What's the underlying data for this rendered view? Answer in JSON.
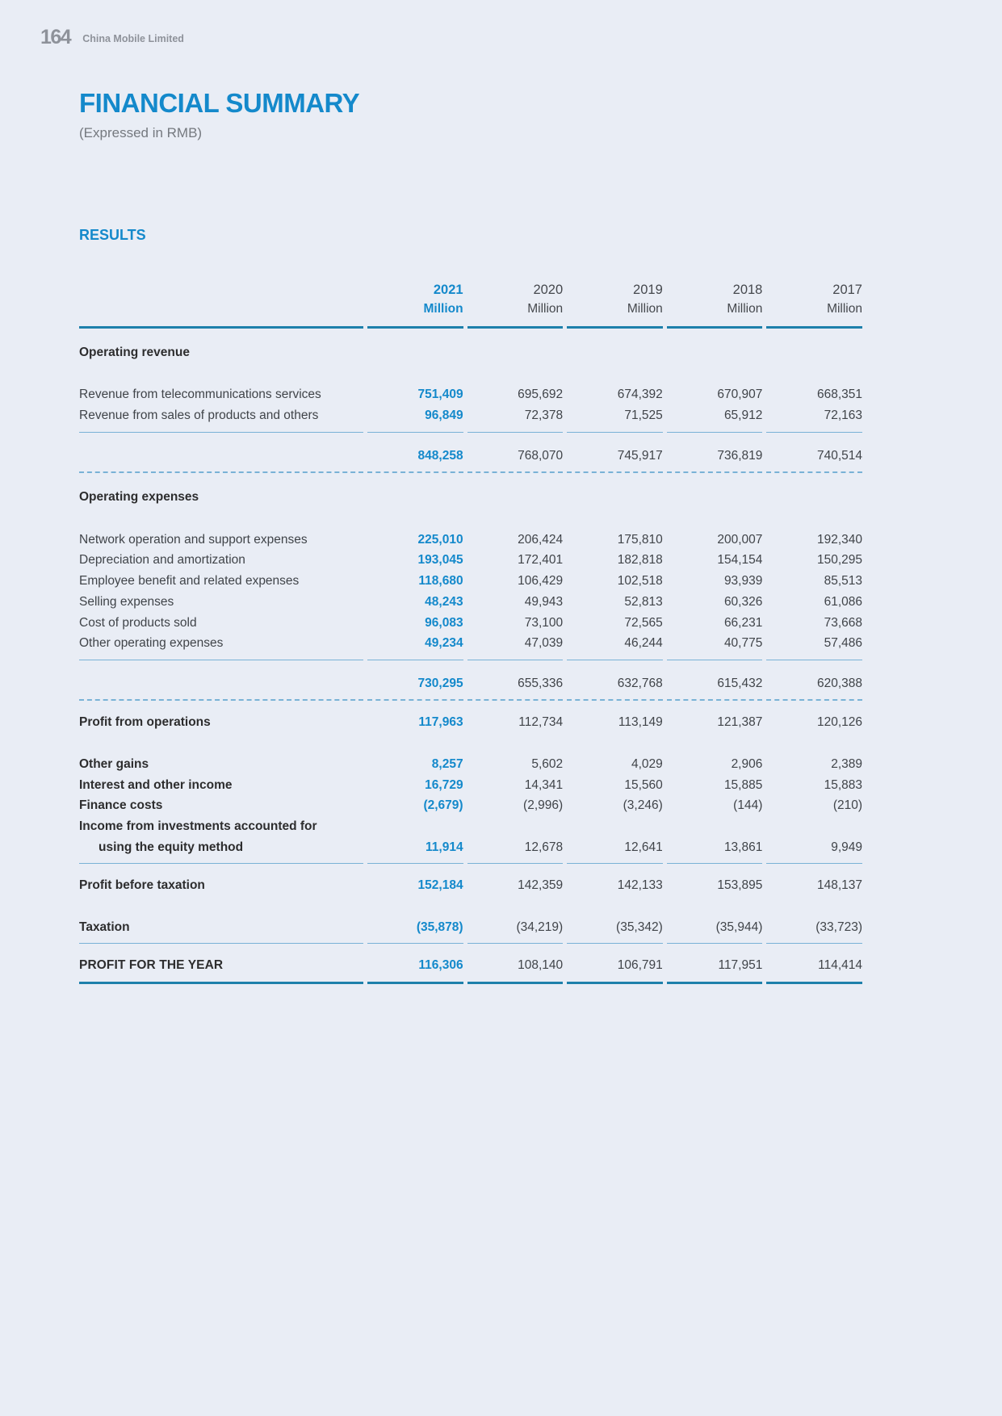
{
  "header": {
    "page_number": "164",
    "company": "China Mobile Limited",
    "title": "FINANCIAL SUMMARY",
    "subtitle": "(Expressed in RMB)"
  },
  "section": {
    "heading": "RESULTS"
  },
  "colors": {
    "background": "#e9edf5",
    "accent_blue": "#1489cb",
    "rule_dark": "#1e80ab",
    "rule_light": "#79b2d6",
    "text_dark": "#404449",
    "text_gray": "#8e929a"
  },
  "table": {
    "columns": [
      {
        "year": "2021",
        "unit": "Million",
        "highlight": true
      },
      {
        "year": "2020",
        "unit": "Million",
        "highlight": false
      },
      {
        "year": "2019",
        "unit": "Million",
        "highlight": false
      },
      {
        "year": "2018",
        "unit": "Million",
        "highlight": false
      },
      {
        "year": "2017",
        "unit": "Million",
        "highlight": false
      }
    ],
    "rows": [
      {
        "type": "section",
        "label": "Operating revenue",
        "values": [
          "",
          "",
          "",
          "",
          ""
        ]
      },
      {
        "type": "spacer"
      },
      {
        "type": "data",
        "label": "Revenue from telecommunications services",
        "values": [
          "751,409",
          "695,692",
          "674,392",
          "670,907",
          "668,351"
        ]
      },
      {
        "type": "data",
        "label": "Revenue from sales of products and others",
        "values": [
          "96,849",
          "72,378",
          "71,525",
          "65,912",
          "72,163"
        ],
        "rule": "thin"
      },
      {
        "type": "subtotal",
        "label": "",
        "values": [
          "848,258",
          "768,070",
          "745,917",
          "736,819",
          "740,514"
        ],
        "rule": "dashed"
      },
      {
        "type": "section",
        "label": "Operating expenses",
        "values": [
          "",
          "",
          "",
          "",
          ""
        ]
      },
      {
        "type": "spacer"
      },
      {
        "type": "data",
        "label": "Network operation and support expenses",
        "values": [
          "225,010",
          "206,424",
          "175,810",
          "200,007",
          "192,340"
        ]
      },
      {
        "type": "data",
        "label": "Depreciation and amortization",
        "values": [
          "193,045",
          "172,401",
          "182,818",
          "154,154",
          "150,295"
        ]
      },
      {
        "type": "data",
        "label": "Employee benefit and related expenses",
        "values": [
          "118,680",
          "106,429",
          "102,518",
          "93,939",
          "85,513"
        ]
      },
      {
        "type": "data",
        "label": "Selling expenses",
        "values": [
          "48,243",
          "49,943",
          "52,813",
          "60,326",
          "61,086"
        ]
      },
      {
        "type": "data",
        "label": "Cost of products sold",
        "values": [
          "96,083",
          "73,100",
          "72,565",
          "66,231",
          "73,668"
        ]
      },
      {
        "type": "data",
        "label": "Other operating expenses",
        "values": [
          "49,234",
          "47,039",
          "46,244",
          "40,775",
          "57,486"
        ],
        "rule": "thin"
      },
      {
        "type": "subtotal",
        "label": "",
        "values": [
          "730,295",
          "655,336",
          "632,768",
          "615,432",
          "620,388"
        ],
        "rule": "dashed"
      },
      {
        "type": "bold",
        "label": "Profit from operations",
        "values": [
          "117,963",
          "112,734",
          "113,149",
          "121,387",
          "120,126"
        ],
        "pad_top": true
      },
      {
        "type": "spacer"
      },
      {
        "type": "bold",
        "label": "Other gains",
        "values": [
          "8,257",
          "5,602",
          "4,029",
          "2,906",
          "2,389"
        ]
      },
      {
        "type": "bold",
        "label": "Interest and other income",
        "values": [
          "16,729",
          "14,341",
          "15,560",
          "15,885",
          "15,883"
        ]
      },
      {
        "type": "bold",
        "label": "Finance costs",
        "values": [
          "(2,679)",
          "(2,996)",
          "(3,246)",
          "(144)",
          "(210)"
        ]
      },
      {
        "type": "bold",
        "label": "Income from investments accounted for",
        "values": [
          "",
          "",
          "",
          "",
          ""
        ]
      },
      {
        "type": "bold",
        "label": "using the equity method",
        "values": [
          "11,914",
          "12,678",
          "12,641",
          "13,861",
          "9,949"
        ],
        "rule": "thin",
        "indent": true
      },
      {
        "type": "bold",
        "label": "Profit before taxation",
        "values": [
          "152,184",
          "142,359",
          "142,133",
          "153,895",
          "148,137"
        ],
        "pad_top": true
      },
      {
        "type": "spacer"
      },
      {
        "type": "bold",
        "label": "Taxation",
        "values": [
          "(35,878)",
          "(34,219)",
          "(35,342)",
          "(35,944)",
          "(33,723)"
        ],
        "rule": "thin"
      },
      {
        "type": "caps",
        "label": "PROFIT FOR THE YEAR",
        "values": [
          "116,306",
          "108,140",
          "106,791",
          "117,951",
          "114,414"
        ],
        "rule": "thick",
        "pad_top": true
      }
    ]
  }
}
